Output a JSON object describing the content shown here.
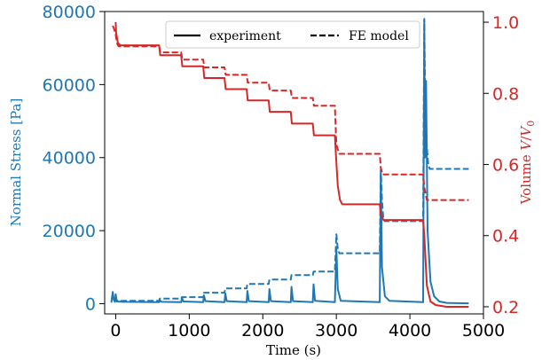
{
  "chart_data": {
    "type": "line",
    "title": "",
    "xlabel": "Time (s)",
    "xlim": [
      -150,
      5000
    ],
    "x_ticks": [
      0,
      1000,
      2000,
      3000,
      4000,
      5000
    ],
    "left_axis": {
      "label": "Normal Stress [Pa]",
      "color": "#1f77b4",
      "ylim": [
        -2800,
        80000
      ],
      "ticks": [
        0,
        20000,
        40000,
        60000,
        80000
      ]
    },
    "right_axis": {
      "label_html": "Volume V/V0",
      "label_main": "Volume ",
      "label_italic": "V",
      "label_slash": "/",
      "label_italic2": "V",
      "label_sub": "0",
      "color": "#d62728",
      "ylim": [
        0.18,
        1.03
      ],
      "ticks": [
        0.2,
        0.4,
        0.6,
        0.8,
        1.0
      ],
      "tick_labels": [
        "0.2",
        "0.4",
        "0.6",
        "0.8",
        "1.0"
      ]
    },
    "legend": {
      "position": "top-center",
      "entries": [
        {
          "label": "experiment",
          "style": "solid"
        },
        {
          "label": "FE model",
          "style": "dashed"
        }
      ]
    },
    "series": [
      {
        "name": "experiment",
        "axis": "left",
        "color": "#1f77b4",
        "style": "solid",
        "points": [
          [
            -60,
            300
          ],
          [
            -40,
            3200
          ],
          [
            -25,
            900
          ],
          [
            -10,
            500
          ],
          [
            0,
            2600
          ],
          [
            15,
            600
          ],
          [
            100,
            500
          ],
          [
            590,
            400
          ],
          [
            600,
            1000
          ],
          [
            620,
            500
          ],
          [
            890,
            400
          ],
          [
            900,
            1600
          ],
          [
            920,
            600
          ],
          [
            1190,
            400
          ],
          [
            1200,
            2300
          ],
          [
            1220,
            700
          ],
          [
            1480,
            400
          ],
          [
            1490,
            2800
          ],
          [
            1510,
            700
          ],
          [
            1780,
            400
          ],
          [
            1790,
            3500
          ],
          [
            1810,
            700
          ],
          [
            2080,
            400
          ],
          [
            2090,
            4000
          ],
          [
            2110,
            700
          ],
          [
            2380,
            400
          ],
          [
            2390,
            4600
          ],
          [
            2410,
            700
          ],
          [
            2680,
            400
          ],
          [
            2690,
            5300
          ],
          [
            2710,
            800
          ],
          [
            2980,
            400
          ],
          [
            3000,
            15000
          ],
          [
            3020,
            4000
          ],
          [
            3060,
            800
          ],
          [
            3590,
            400
          ],
          [
            3605,
            36500
          ],
          [
            3620,
            10000
          ],
          [
            3660,
            2000
          ],
          [
            3720,
            800
          ],
          [
            4180,
            400
          ],
          [
            4195,
            77500
          ],
          [
            4205,
            40000
          ],
          [
            4220,
            61000
          ],
          [
            4240,
            20000
          ],
          [
            4280,
            6000
          ],
          [
            4330,
            2000
          ],
          [
            4400,
            600
          ],
          [
            4500,
            200
          ],
          [
            4800,
            100
          ]
        ]
      },
      {
        "name": "FE model",
        "axis": "left",
        "color": "#1f77b4",
        "style": "dashed",
        "points": [
          [
            -40,
            1600
          ],
          [
            0,
            1000
          ],
          [
            30,
            800
          ],
          [
            590,
            800
          ],
          [
            600,
            1400
          ],
          [
            890,
            1400
          ],
          [
            900,
            1800
          ],
          [
            1190,
            1800
          ],
          [
            1200,
            3000
          ],
          [
            1480,
            3000
          ],
          [
            1490,
            4200
          ],
          [
            1780,
            4200
          ],
          [
            1790,
            5400
          ],
          [
            2080,
            5400
          ],
          [
            2090,
            6600
          ],
          [
            2380,
            6600
          ],
          [
            2390,
            7800
          ],
          [
            2680,
            7800
          ],
          [
            2690,
            8800
          ],
          [
            2980,
            8800
          ],
          [
            3000,
            19000
          ],
          [
            3020,
            15000
          ],
          [
            3040,
            13800
          ],
          [
            3590,
            13800
          ],
          [
            3605,
            36800
          ],
          [
            3620,
            28500
          ],
          [
            3640,
            23000
          ],
          [
            3660,
            22600
          ],
          [
            4180,
            22600
          ],
          [
            4195,
            78000
          ],
          [
            4205,
            60000
          ],
          [
            4230,
            43000
          ],
          [
            4250,
            38000
          ],
          [
            4270,
            36900
          ],
          [
            4800,
            36900
          ]
        ]
      },
      {
        "name": "experiment",
        "axis": "right",
        "color": "#d62728",
        "style": "solid",
        "points": [
          [
            0,
            1.0
          ],
          [
            5,
            0.97
          ],
          [
            30,
            0.942
          ],
          [
            60,
            0.935
          ],
          [
            590,
            0.935
          ],
          [
            605,
            0.907
          ],
          [
            890,
            0.907
          ],
          [
            905,
            0.876
          ],
          [
            1190,
            0.876
          ],
          [
            1205,
            0.843
          ],
          [
            1480,
            0.843
          ],
          [
            1495,
            0.812
          ],
          [
            1780,
            0.812
          ],
          [
            1795,
            0.78
          ],
          [
            2080,
            0.78
          ],
          [
            2095,
            0.748
          ],
          [
            2380,
            0.748
          ],
          [
            2395,
            0.715
          ],
          [
            2680,
            0.715
          ],
          [
            2695,
            0.682
          ],
          [
            2980,
            0.682
          ],
          [
            3000,
            0.605
          ],
          [
            3020,
            0.54
          ],
          [
            3050,
            0.5
          ],
          [
            3080,
            0.488
          ],
          [
            3590,
            0.488
          ],
          [
            3605,
            0.46
          ],
          [
            3640,
            0.444
          ],
          [
            4180,
            0.444
          ],
          [
            4195,
            0.4
          ],
          [
            4230,
            0.26
          ],
          [
            4280,
            0.215
          ],
          [
            4350,
            0.205
          ],
          [
            4500,
            0.2
          ],
          [
            4800,
            0.2
          ]
        ]
      },
      {
        "name": "FE model",
        "axis": "right",
        "color": "#d62728",
        "style": "dashed",
        "points": [
          [
            -40,
            0.99
          ],
          [
            -20,
            0.98
          ],
          [
            0,
            0.965
          ],
          [
            20,
            0.94
          ],
          [
            40,
            0.932
          ],
          [
            590,
            0.932
          ],
          [
            605,
            0.915
          ],
          [
            890,
            0.915
          ],
          [
            905,
            0.895
          ],
          [
            1190,
            0.895
          ],
          [
            1205,
            0.873
          ],
          [
            1480,
            0.873
          ],
          [
            1495,
            0.852
          ],
          [
            1780,
            0.852
          ],
          [
            1795,
            0.83
          ],
          [
            2080,
            0.83
          ],
          [
            2095,
            0.808
          ],
          [
            2380,
            0.808
          ],
          [
            2395,
            0.787
          ],
          [
            2680,
            0.787
          ],
          [
            2695,
            0.765
          ],
          [
            2980,
            0.765
          ],
          [
            3000,
            0.655
          ],
          [
            3040,
            0.63
          ],
          [
            3590,
            0.63
          ],
          [
            3605,
            0.59
          ],
          [
            3630,
            0.572
          ],
          [
            4180,
            0.572
          ],
          [
            4195,
            0.535
          ],
          [
            4230,
            0.5
          ],
          [
            4800,
            0.5
          ]
        ]
      }
    ]
  }
}
